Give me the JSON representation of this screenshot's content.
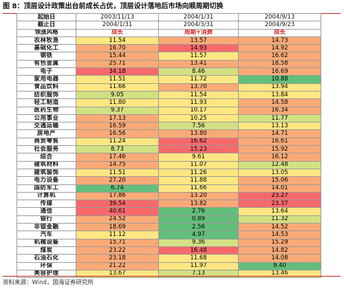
{
  "title": "图 8：顶层设计政策出台前成长占优，顶层设计落地后市场向顺周期切换",
  "source": "资料来源：Wind，国海证券研究所",
  "header_rows": [
    {
      "label": "起始日",
      "values": [
        "2003/11/13",
        "2004/1/31",
        "2004/9/13"
      ]
    },
    {
      "label": "截止日",
      "values": [
        "2004/1/31",
        "2004/3/31",
        "2004/9/23"
      ]
    },
    {
      "label": "领涨风格",
      "values": [
        "成长",
        "周期+消费",
        "成长"
      ]
    }
  ],
  "colors": {
    "red": "#f8696b",
    "orange": "#fbaa77",
    "yellow": "#fee782",
    "lime": "#d3e082",
    "green": "#63be7b",
    "title_rule": "#b11d1d",
    "style_text": "#d81e1e"
  },
  "rows": [
    {
      "label": "农林牧渔",
      "values": [
        "11.54",
        "13.57",
        "14.73"
      ],
      "bg": [
        "#fee782",
        "#fbaa77",
        "#fbaa77"
      ]
    },
    {
      "label": "基础化工",
      "values": [
        "16.70",
        "14.93",
        "14.92"
      ],
      "bg": [
        "#fbaa77",
        "#f8696b",
        "#fbaa77"
      ]
    },
    {
      "label": "钢铁",
      "values": [
        "15.44",
        "11.57",
        "16.62"
      ],
      "bg": [
        "#fbaa77",
        "#fee782",
        "#fbaa77"
      ]
    },
    {
      "label": "有色金属",
      "values": [
        "25.71",
        "13.41",
        "18.58"
      ],
      "bg": [
        "#fbaa77",
        "#fbaa77",
        "#fbaa77"
      ]
    },
    {
      "label": "电子",
      "values": [
        "34.18",
        "8.46",
        "16.69"
      ],
      "bg": [
        "#f8696b",
        "#d3e082",
        "#fbaa77"
      ]
    },
    {
      "label": "家用电器",
      "values": [
        "11.51",
        "11.72",
        "10.88"
      ],
      "bg": [
        "#fee782",
        "#fee782",
        "#63be7b"
      ]
    },
    {
      "label": "食品饮料",
      "values": [
        "11.66",
        "13.70",
        "13.94"
      ],
      "bg": [
        "#fee782",
        "#fbaa77",
        "#fee782"
      ]
    },
    {
      "label": "纺织服饰",
      "values": [
        "9.05",
        "11.54",
        "13.84"
      ],
      "bg": [
        "#d3e082",
        "#fee782",
        "#fee782"
      ]
    },
    {
      "label": "轻工制造",
      "values": [
        "11.80",
        "11.93",
        "14.58"
      ],
      "bg": [
        "#fee782",
        "#fee782",
        "#fbaa77"
      ]
    },
    {
      "label": "医药生物",
      "values": [
        "9.37",
        "10.17",
        "16.34"
      ],
      "bg": [
        "#d3e082",
        "#fee782",
        "#fbaa77"
      ]
    },
    {
      "label": "公用事业",
      "values": [
        "17.13",
        "10.25",
        "11.77"
      ],
      "bg": [
        "#fbaa77",
        "#fee782",
        "#d3e082"
      ]
    },
    {
      "label": "交通运输",
      "values": [
        "16.59",
        "7.56",
        "13.13"
      ],
      "bg": [
        "#fbaa77",
        "#d3e082",
        "#fee782"
      ]
    },
    {
      "label": "房地产",
      "values": [
        "16.56",
        "13.80",
        "14.71"
      ],
      "bg": [
        "#fbaa77",
        "#fbaa77",
        "#fbaa77"
      ]
    },
    {
      "label": "商贸零售",
      "values": [
        "11.24",
        "16.62",
        "16.61"
      ],
      "bg": [
        "#fee782",
        "#f8696b",
        "#fbaa77"
      ]
    },
    {
      "label": "社会服务",
      "values": [
        "8.73",
        "15.23",
        "15.92"
      ],
      "bg": [
        "#d3e082",
        "#f8696b",
        "#fbaa77"
      ]
    },
    {
      "label": "综合",
      "values": [
        "17.46",
        "9.61",
        "16.12"
      ],
      "bg": [
        "#fbaa77",
        "#fee782",
        "#fbaa77"
      ]
    },
    {
      "label": "建筑材料",
      "values": [
        "14.75",
        "11.07",
        "12.48"
      ],
      "bg": [
        "#fbaa77",
        "#fee782",
        "#d3e082"
      ]
    },
    {
      "label": "建筑装饰",
      "values": [
        "11.51",
        "11.26",
        "13.05"
      ],
      "bg": [
        "#fee782",
        "#fee782",
        "#fee782"
      ]
    },
    {
      "label": "电力设备",
      "values": [
        "27.20",
        "11.88",
        "15.06"
      ],
      "bg": [
        "#fbaa77",
        "#fee782",
        "#fbaa77"
      ]
    },
    {
      "label": "国防军工",
      "values": [
        "6.74",
        "11.66",
        "14.01"
      ],
      "bg": [
        "#63be7b",
        "#fee782",
        "#fbaa77"
      ]
    },
    {
      "label": "计算机",
      "values": [
        "17.86",
        "13.20",
        "23.27"
      ],
      "bg": [
        "#fbaa77",
        "#fbaa77",
        "#f8696b"
      ]
    },
    {
      "label": "传媒",
      "values": [
        "39.54",
        "13.82",
        "23.37"
      ],
      "bg": [
        "#f8696b",
        "#fbaa77",
        "#f8696b"
      ]
    },
    {
      "label": "通信",
      "values": [
        "40.61",
        "2.76",
        "13.64"
      ],
      "bg": [
        "#f8696b",
        "#63be7b",
        "#fee782"
      ]
    },
    {
      "label": "银行",
      "values": [
        "24.52",
        "0.89",
        "11.32"
      ],
      "bg": [
        "#fbaa77",
        "#63be7b",
        "#d3e082"
      ]
    },
    {
      "label": "非银金融",
      "values": [
        "18.69",
        "2.56",
        "14.52"
      ],
      "bg": [
        "#fbaa77",
        "#63be7b",
        "#fbaa77"
      ]
    },
    {
      "label": "汽车",
      "values": [
        "11.12",
        "4.97",
        "14.53"
      ],
      "bg": [
        "#fee782",
        "#63be7b",
        "#fbaa77"
      ]
    },
    {
      "label": "机械设备",
      "values": [
        "15.71",
        "9.36",
        "15.29"
      ],
      "bg": [
        "#fbaa77",
        "#d3e082",
        "#fbaa77"
      ]
    },
    {
      "label": "煤炭",
      "values": [
        "23.22",
        "16.48",
        "14.82"
      ],
      "bg": [
        "#fbaa77",
        "#f8696b",
        "#fbaa77"
      ]
    },
    {
      "label": "石油石化",
      "values": [
        "23.18",
        "11.68",
        "14.08"
      ],
      "bg": [
        "#fbaa77",
        "#fee782",
        "#fbaa77"
      ]
    },
    {
      "label": "环保",
      "values": [
        "21.22",
        "11.97",
        "9.40"
      ],
      "bg": [
        "#fbaa77",
        "#fee782",
        "#63be7b"
      ]
    },
    {
      "label": "美容护理",
      "values": [
        "13.67",
        "7.13",
        "13.46"
      ],
      "bg": [
        "#fee782",
        "#d3e082",
        "#fee782"
      ]
    }
  ]
}
